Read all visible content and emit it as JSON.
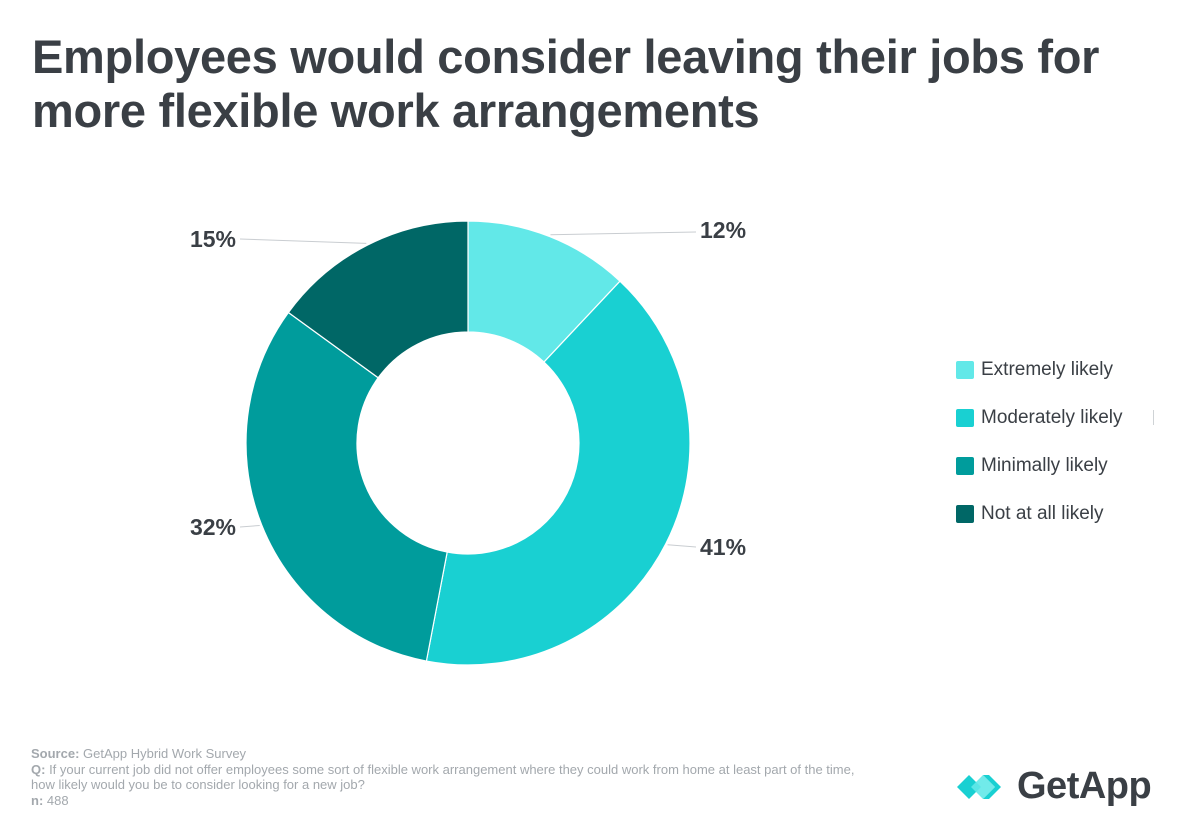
{
  "title": "Employees would consider leaving their jobs for more flexible work arrangements",
  "chart_data": {
    "type": "pie",
    "variant": "donut",
    "categories": [
      "Extremely likely",
      "Moderately likely",
      "Minimally likely",
      "Not at all likely"
    ],
    "values": [
      12,
      41,
      32,
      15
    ],
    "labels": [
      "12%",
      "41%",
      "32%",
      "15%"
    ],
    "colors": [
      "#62e8e8",
      "#19d0d2",
      "#009c9c",
      "#006766"
    ],
    "legend_position": "right",
    "start_angle_deg": 0,
    "direction": "clockwise"
  },
  "footnote": {
    "source_label": "Source:",
    "source_text": " GetApp Hybrid Work Survey",
    "q_label": "Q:",
    "q_text": " If your current job did not offer employees some sort of flexible work arrangement where they could work from home at least part of the time, how likely would you be to consider looking for a new job?",
    "n_label": "n:",
    "n_text": " 488"
  },
  "brand": {
    "name": "GetApp",
    "logo_icon": "getapp-chevrons-icon",
    "colors": [
      "#19d0d2",
      "#62e8e8"
    ]
  }
}
